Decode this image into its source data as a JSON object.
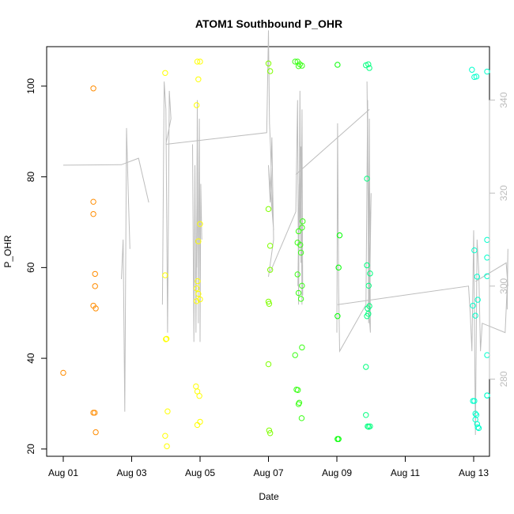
{
  "chart_data": {
    "type": "scatter",
    "title": "ATOM1 Southbound P_OHR",
    "xlabel": "Date",
    "ylabel": "P_OHR",
    "x_ticks": [
      "Aug 01",
      "Aug 03",
      "Aug 05",
      "Aug 07",
      "Aug 09",
      "Aug 11",
      "Aug 13"
    ],
    "y_ticks": [
      20,
      40,
      60,
      80,
      100
    ],
    "y2_ticks": [
      280,
      300,
      320,
      340
    ],
    "xlim": [
      0,
      12.5
    ],
    "ylim": [
      18.4,
      108.7
    ],
    "y2lim": [
      263.4,
      351.5
    ],
    "colors": {
      "line": "#bdbdbd",
      "right_axis": "#bdbdbd",
      "day_colors": [
        "#ff8c00",
        "#ff8c00",
        "#ffd700",
        "#ffff00",
        "#ffff00",
        "#9aff00",
        "#7fff00",
        "#39ff14",
        "#00ff00",
        "#00ff7f",
        "#00ff7f",
        "#00ffcc",
        "#00ffcc"
      ]
    },
    "series": [
      {
        "points": [
          [
            0.0,
            36.8
          ],
          [
            0.88,
            99.5
          ],
          [
            0.88,
            74.5
          ],
          [
            0.88,
            71.8
          ],
          [
            0.93,
            58.6
          ],
          [
            0.93,
            55.9
          ],
          [
            0.88,
            51.6
          ],
          [
            0.95,
            51.0
          ],
          [
            0.88,
            28.0
          ],
          [
            0.92,
            28.0
          ],
          [
            0.95,
            23.7
          ],
          [
            2.98,
            102.9
          ],
          [
            2.98,
            58.3
          ],
          [
            3.02,
            44.3
          ],
          [
            3.0,
            44.2
          ],
          [
            3.05,
            28.3
          ],
          [
            2.98,
            22.9
          ],
          [
            3.03,
            20.6
          ],
          [
            3.92,
            105.4
          ],
          [
            4.0,
            105.4
          ],
          [
            3.95,
            101.5
          ],
          [
            3.9,
            95.8
          ],
          [
            4.0,
            69.6
          ],
          [
            3.95,
            65.8
          ],
          [
            3.93,
            57.0
          ],
          [
            3.9,
            55.4
          ],
          [
            3.95,
            54.2
          ],
          [
            4.0,
            53.0
          ],
          [
            3.9,
            52.6
          ],
          [
            3.88,
            33.8
          ],
          [
            3.92,
            32.7
          ],
          [
            3.98,
            31.7
          ],
          [
            4.0,
            26.0
          ],
          [
            3.92,
            25.3
          ],
          [
            6.0,
            105.0
          ],
          [
            6.05,
            103.3
          ],
          [
            6.0,
            72.9
          ],
          [
            6.05,
            64.8
          ],
          [
            6.05,
            59.5
          ],
          [
            6.0,
            52.5
          ],
          [
            6.02,
            52.0
          ],
          [
            6.0,
            38.7
          ],
          [
            6.02,
            24.1
          ],
          [
            6.05,
            23.5
          ],
          [
            6.78,
            105.4
          ],
          [
            6.85,
            105.4
          ],
          [
            6.92,
            104.8
          ],
          [
            6.88,
            104.4
          ],
          [
            6.98,
            104.5
          ],
          [
            6.88,
            68.0
          ],
          [
            7.0,
            70.2
          ],
          [
            6.98,
            68.8
          ],
          [
            6.85,
            65.5
          ],
          [
            6.93,
            65.0
          ],
          [
            6.95,
            63.3
          ],
          [
            6.85,
            58.5
          ],
          [
            6.98,
            56.0
          ],
          [
            6.88,
            54.4
          ],
          [
            6.95,
            53.1
          ],
          [
            6.78,
            40.7
          ],
          [
            6.98,
            42.4
          ],
          [
            6.82,
            33.1
          ],
          [
            6.86,
            33.0
          ],
          [
            6.9,
            30.2
          ],
          [
            6.88,
            29.9
          ],
          [
            6.97,
            26.8
          ],
          [
            8.02,
            104.7
          ],
          [
            8.08,
            67.1
          ],
          [
            8.05,
            60.0
          ],
          [
            8.02,
            49.3
          ],
          [
            8.02,
            22.2
          ],
          [
            8.05,
            22.2
          ],
          [
            8.85,
            104.6
          ],
          [
            8.92,
            104.8
          ],
          [
            8.95,
            104.0
          ],
          [
            8.88,
            79.6
          ],
          [
            8.97,
            58.7
          ],
          [
            8.88,
            60.5
          ],
          [
            8.93,
            56.0
          ],
          [
            8.95,
            51.5
          ],
          [
            8.9,
            51.0
          ],
          [
            8.92,
            49.8
          ],
          [
            8.88,
            49.3
          ],
          [
            8.85,
            38.1
          ],
          [
            8.85,
            27.5
          ],
          [
            8.9,
            25.0
          ],
          [
            8.93,
            24.9
          ],
          [
            8.97,
            25.0
          ],
          [
            11.95,
            103.6
          ],
          [
            12.02,
            102.0
          ],
          [
            12.08,
            102.1
          ],
          [
            12.02,
            63.8
          ],
          [
            12.1,
            58.0
          ],
          [
            12.12,
            52.9
          ],
          [
            11.98,
            51.6
          ],
          [
            12.05,
            49.4
          ],
          [
            11.98,
            30.6
          ],
          [
            12.02,
            30.6
          ],
          [
            12.05,
            27.8
          ],
          [
            12.08,
            27.5
          ],
          [
            12.05,
            26.5
          ],
          [
            12.1,
            25.5
          ],
          [
            12.12,
            24.8
          ],
          [
            12.15,
            24.6
          ],
          [
            12.95,
            103.2
          ],
          [
            12.98,
            66.1
          ],
          [
            12.95,
            62.2
          ],
          [
            12.98,
            58.1
          ],
          [
            12.95,
            40.7
          ],
          [
            12.95,
            31.8
          ],
          [
            13.0,
            31.8
          ]
        ]
      }
    ]
  }
}
